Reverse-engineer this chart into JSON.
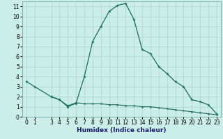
{
  "xlabel": "Humidex (Indice chaleur)",
  "bg_color": "#cceee8",
  "grid_color": "#aad4ce",
  "line_color": "#1a6b5a",
  "x_main": [
    0,
    1,
    3,
    4,
    5,
    6,
    7,
    8,
    9,
    10,
    11,
    12,
    13,
    14,
    15,
    16,
    17,
    18,
    19,
    20,
    21,
    22,
    23
  ],
  "y_main": [
    3.5,
    3.0,
    2.0,
    1.7,
    1.0,
    1.35,
    4.0,
    7.5,
    9.0,
    10.5,
    11.1,
    11.3,
    9.7,
    6.7,
    6.3,
    5.0,
    4.3,
    3.5,
    3.0,
    1.7,
    1.5,
    1.2,
    0.3
  ],
  "x_flat": [
    3,
    4,
    5,
    6,
    7,
    8,
    9,
    10,
    11,
    12,
    13,
    14,
    15,
    16,
    17,
    18,
    19,
    20,
    21,
    22,
    23
  ],
  "y_flat": [
    2.0,
    1.7,
    1.1,
    1.4,
    1.3,
    1.3,
    1.3,
    1.2,
    1.2,
    1.1,
    1.1,
    1.0,
    1.0,
    0.9,
    0.8,
    0.7,
    0.6,
    0.5,
    0.4,
    0.3,
    0.2
  ],
  "xlim": [
    -0.5,
    23.5
  ],
  "ylim": [
    0,
    11.5
  ],
  "yticks": [
    0,
    1,
    2,
    3,
    4,
    5,
    6,
    7,
    8,
    9,
    10,
    11
  ],
  "xticks": [
    0,
    1,
    3,
    4,
    5,
    6,
    7,
    8,
    9,
    10,
    11,
    12,
    13,
    14,
    15,
    16,
    17,
    18,
    19,
    20,
    21,
    22,
    23
  ],
  "xlabel_color": "#1a1a6a",
  "xlabel_fontsize": 6.0,
  "tick_fontsize": 5.5,
  "label_fontsize": 6.5
}
